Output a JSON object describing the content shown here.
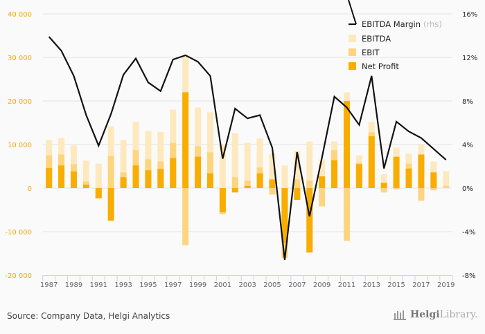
{
  "chart_data": {
    "type": "bar",
    "title": "",
    "xlabel": "",
    "ylabel": "",
    "categories": [
      "1987",
      "1988",
      "1989",
      "1990",
      "1991",
      "1992",
      "1993",
      "1994",
      "1995",
      "1996",
      "1997",
      "1998",
      "1999",
      "2000",
      "2001",
      "2002",
      "2003",
      "2004",
      "2005",
      "2006",
      "2007",
      "2008",
      "2009",
      "2010",
      "2011",
      "2012",
      "2013",
      "2014",
      "2015",
      "2016",
      "2017",
      "2018",
      "2019"
    ],
    "x_tick_labels": [
      "1987",
      "1989",
      "1991",
      "1993",
      "1995",
      "1997",
      "1999",
      "2001",
      "2003",
      "2005",
      "2007",
      "2009",
      "2011",
      "2013",
      "2015",
      "2017",
      "2019"
    ],
    "ylim": [
      -20000,
      40000
    ],
    "y_ticks": [
      -20000,
      -10000,
      0,
      10000,
      20000,
      30000,
      40000
    ],
    "y_tick_labels": [
      "-20 000",
      "-10 000",
      "0",
      "10 000",
      "20 000",
      "30 000",
      "40 000"
    ],
    "y2lim": [
      -8,
      16
    ],
    "y2_ticks": [
      -8,
      -4,
      0,
      4,
      8,
      12,
      16
    ],
    "y2_tick_labels": [
      "-8%",
      "-4%",
      "0%",
      "4%",
      "8%",
      "12%",
      "16%"
    ],
    "grid": true,
    "legend_position": "top-right",
    "series": [
      {
        "name": "EBITDA",
        "kind": "bar",
        "color": "#fde9bd",
        "values": [
          11000,
          11500,
          9800,
          6300,
          5600,
          14200,
          11000,
          15200,
          13100,
          12900,
          18000,
          30200,
          18500,
          17400,
          10000,
          12600,
          10400,
          11400,
          7900,
          5200,
          8500,
          10700,
          6600,
          10700,
          22000,
          7500,
          15200,
          3200,
          9300,
          7900,
          9900,
          6100,
          3900
        ]
      },
      {
        "name": "EBIT",
        "kind": "bar",
        "color": "#fdd57e",
        "values": [
          7500,
          7700,
          5500,
          1500,
          -2400,
          7400,
          3600,
          8700,
          6600,
          6100,
          10400,
          -13100,
          9600,
          8200,
          -6000,
          2500,
          1700,
          4700,
          -1500,
          -16000,
          2000,
          1700,
          -4200,
          8700,
          -12100,
          5800,
          12800,
          -1000,
          -300,
          5600,
          -2900,
          -500,
          500
        ]
      },
      {
        "name": "Net Profit",
        "kind": "bar",
        "color": "#f9ad00",
        "values": [
          4600,
          5200,
          3800,
          800,
          -2300,
          -7500,
          2500,
          5200,
          4100,
          4400,
          6900,
          22000,
          7200,
          3400,
          -5500,
          -1000,
          500,
          3400,
          2000,
          -12500,
          -2700,
          -14800,
          2700,
          6400,
          20000,
          5500,
          11900,
          1200,
          7200,
          4500,
          7700,
          3600,
          0
        ]
      },
      {
        "name": "EBITDA Margin",
        "legend_suffix": "(rhs)",
        "kind": "line",
        "axis": "right",
        "color": "#111111",
        "values": [
          13.9,
          12.6,
          10.3,
          6.7,
          3.9,
          6.8,
          10.4,
          11.9,
          9.7,
          8.9,
          11.8,
          12.2,
          11.6,
          10.3,
          2.7,
          7.3,
          6.4,
          6.7,
          3.7,
          -6.6,
          3.3,
          -2.6,
          2.8,
          8.4,
          7.4,
          5.8,
          10.3,
          1.8,
          6.1,
          5.2,
          4.6,
          3.6,
          2.6
        ]
      }
    ]
  },
  "legend": {
    "items": [
      {
        "label": "EBITDA Margin",
        "suffix": "(rhs)"
      },
      {
        "label": "EBITDA"
      },
      {
        "label": "EBIT"
      },
      {
        "label": "Net Profit"
      }
    ]
  },
  "footer": {
    "source": "Source: Company Data, Helgi Analytics",
    "brand_bold": "Helgi",
    "brand_light": "Library."
  }
}
